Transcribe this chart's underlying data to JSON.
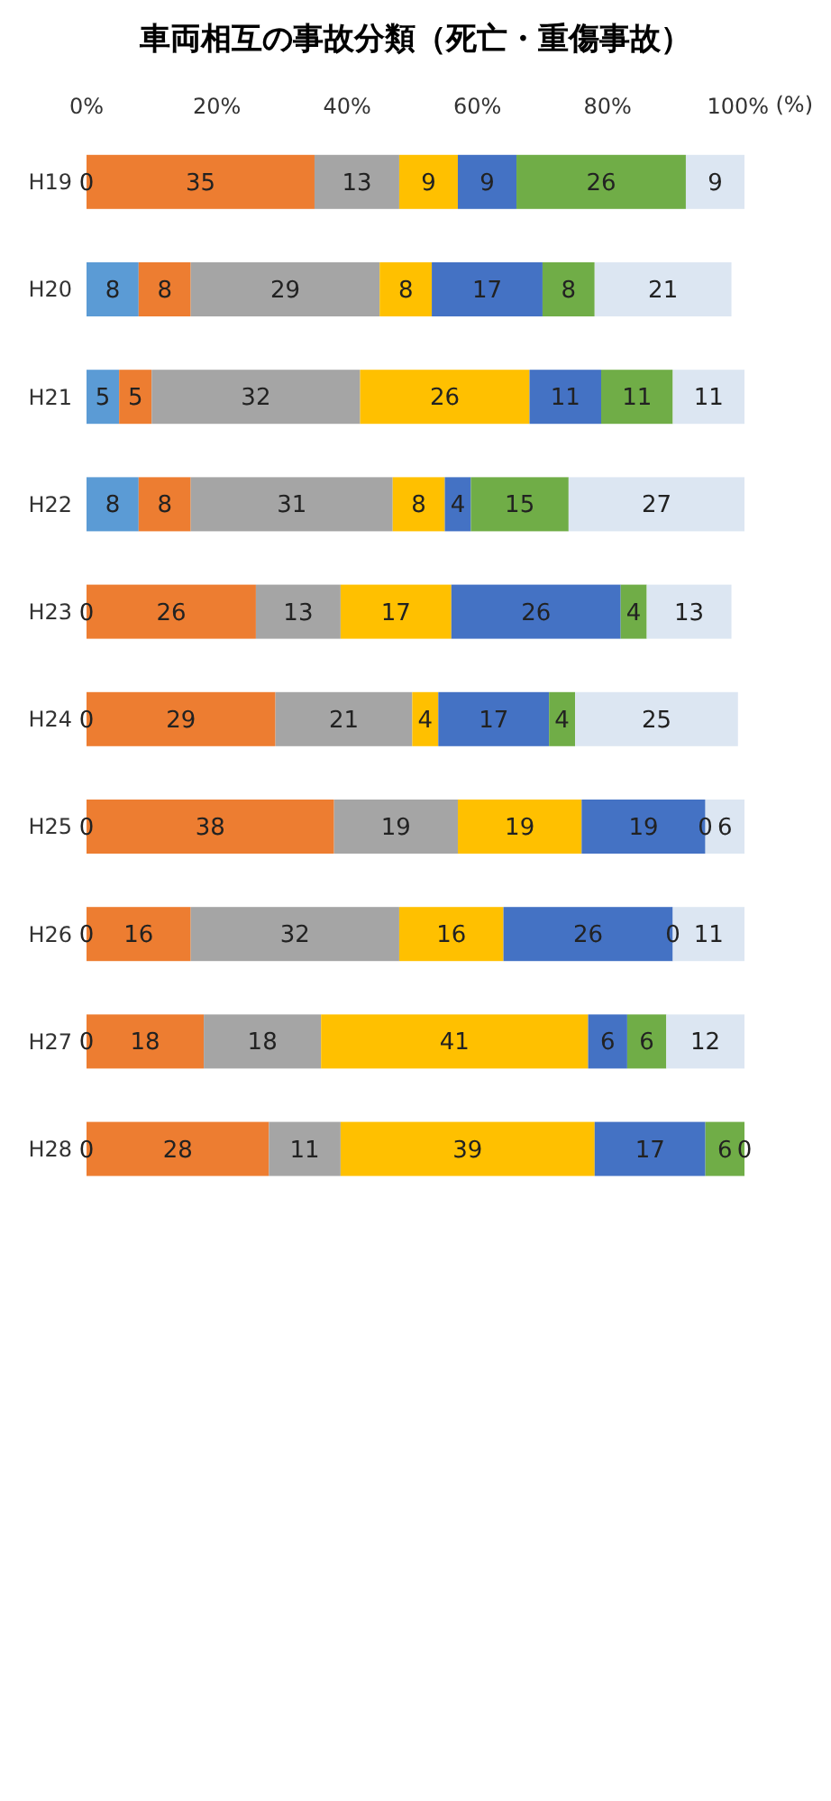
{
  "chart_data": {
    "type": "bar",
    "orientation": "horizontal",
    "stacked": true,
    "title": "車両相互の事故分類（死亡・重傷事故）",
    "xlabel": "(%)",
    "categories": [
      "H19",
      "H20",
      "H21",
      "H22",
      "H23",
      "H24",
      "H25",
      "H26",
      "H27",
      "H28"
    ],
    "series": [
      {
        "color": "#5b9bd5",
        "values": [
          0,
          8,
          5,
          8,
          0,
          0,
          0,
          0,
          0,
          0
        ],
        "value_labels": [
          null,
          "8",
          "5",
          "8",
          null,
          null,
          null,
          null,
          null,
          null
        ]
      },
      {
        "color": "#ed7d31",
        "values": [
          35,
          8,
          5,
          8,
          26,
          29,
          38,
          16,
          18,
          28
        ],
        "value_labels": [
          "35",
          "8",
          "5",
          "8",
          "26",
          "29",
          "38",
          "16",
          "18",
          "28"
        ]
      },
      {
        "color": "#a5a5a5",
        "values": [
          13,
          29,
          32,
          31,
          13,
          21,
          19,
          32,
          18,
          11
        ],
        "value_labels": [
          "13",
          "29",
          "32",
          "31",
          "13",
          "21",
          "19",
          "32",
          "18",
          "11"
        ]
      },
      {
        "color": "#ffc000",
        "values": [
          9,
          8,
          26,
          8,
          17,
          4,
          19,
          16,
          41,
          39
        ],
        "value_labels": [
          "9",
          "8",
          "26",
          "8",
          "17",
          "4",
          "19",
          "16",
          "41",
          "39"
        ]
      },
      {
        "color": "#4472c4",
        "values": [
          9,
          17,
          11,
          4,
          26,
          17,
          19,
          26,
          6,
          17
        ],
        "value_labels": [
          "9",
          "17",
          "11",
          "4",
          "26",
          "17",
          "19",
          "26",
          "6",
          "17"
        ]
      },
      {
        "color": "#70ad47",
        "values": [
          26,
          8,
          11,
          15,
          4,
          4,
          0,
          0,
          6,
          6
        ],
        "value_labels": [
          "26",
          "8",
          "11",
          "15",
          "4",
          "4",
          null,
          null,
          "6",
          "6"
        ]
      },
      {
        "color": "#dce6f2",
        "values": [
          9,
          21,
          11,
          27,
          13,
          25,
          6,
          11,
          12,
          0
        ],
        "value_labels": [
          "9",
          "21",
          "11",
          "27",
          "13",
          "25",
          "6",
          "11",
          "12",
          null
        ]
      }
    ],
    "annotations": [
      {
        "text": "0",
        "x": 0,
        "y": "H19"
      },
      {
        "text": "0",
        "x": 0,
        "y": "H23"
      },
      {
        "text": "0",
        "x": 0,
        "y": "H24"
      },
      {
        "text": "0",
        "x": 0,
        "y": "H25"
      },
      {
        "text": "0",
        "x": 95,
        "y": "H25"
      },
      {
        "text": "0",
        "x": 0,
        "y": "H26"
      },
      {
        "text": "0",
        "x": 90,
        "y": "H26"
      },
      {
        "text": "0",
        "x": 0,
        "y": "H27"
      },
      {
        "text": "0",
        "x": 0,
        "y": "H28"
      },
      {
        "text": "0",
        "x": 101,
        "y": "H28"
      }
    ],
    "xlim": [
      0,
      101
    ],
    "xticks": [
      {
        "value": 0,
        "label": "0%"
      },
      {
        "value": 20,
        "label": "20%"
      },
      {
        "value": 40,
        "label": "40%"
      },
      {
        "value": 60,
        "label": "60%"
      },
      {
        "value": 80,
        "label": "80%"
      },
      {
        "value": 100,
        "label": "100%"
      }
    ],
    "grid": false,
    "legend": false
  }
}
